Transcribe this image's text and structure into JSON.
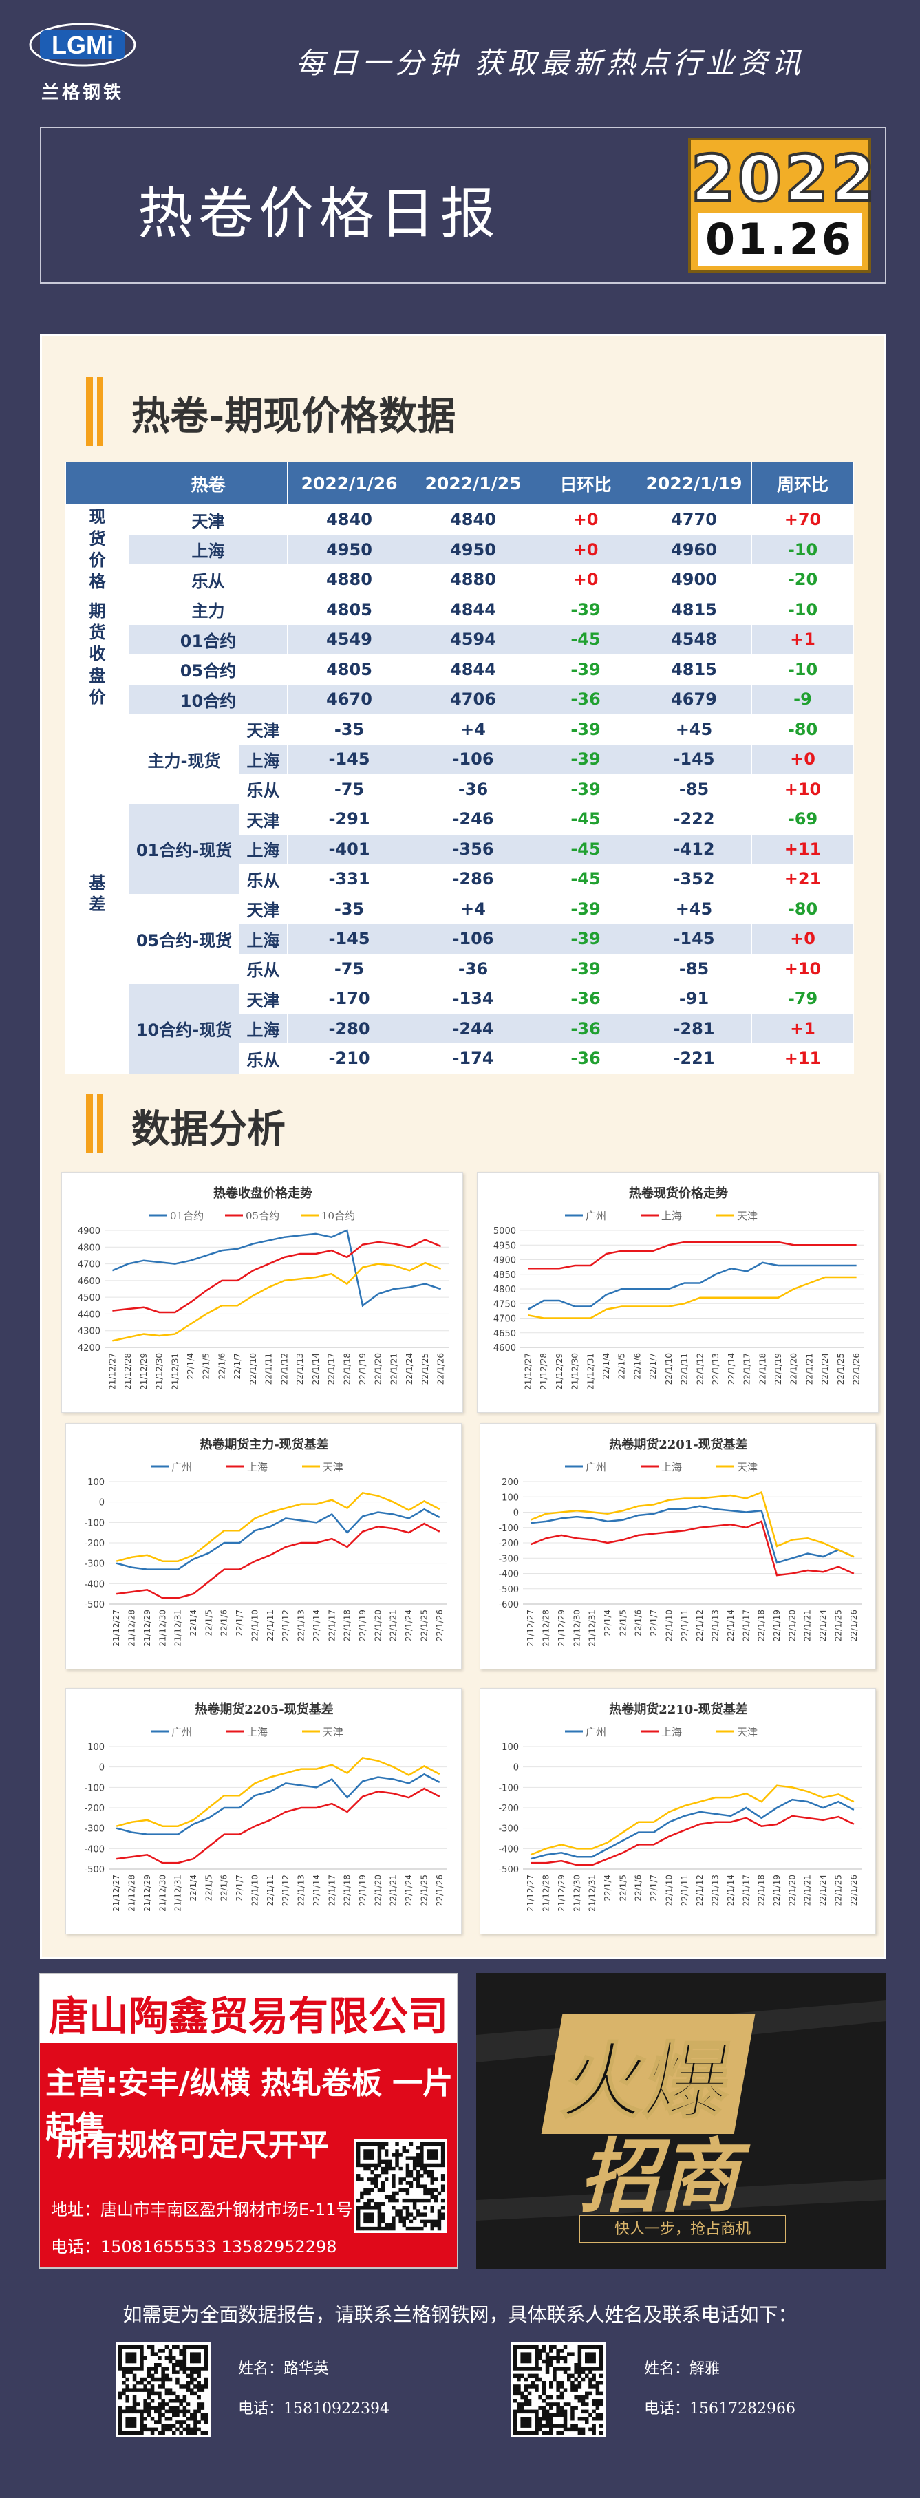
{
  "header": {
    "logo_badge": "LGMi",
    "logo_text": "兰格钢铁",
    "slogan": "每日一分钟  获取最新热点行业资讯",
    "title": "热卷价格日报",
    "date_year": "2022",
    "date_md": "01.26"
  },
  "section1_title": "热卷-期现价格数据",
  "section2_title": "数据分析",
  "table": {
    "headers": [
      "热卷",
      "2022/1/26",
      "2022/1/25",
      "日环比",
      "2022/1/19",
      "周环比"
    ],
    "groups": {
      "spot": "现货价格",
      "futures": "期货收盘价",
      "basis": "基差"
    },
    "spot": [
      {
        "name": "天津",
        "v": [
          "4840",
          "4840",
          "+0",
          "4770",
          "+70"
        ]
      },
      {
        "name": "上海",
        "v": [
          "4950",
          "4950",
          "+0",
          "4960",
          "-10"
        ]
      },
      {
        "name": "乐从",
        "v": [
          "4880",
          "4880",
          "+0",
          "4900",
          "-20"
        ]
      }
    ],
    "futures": [
      {
        "name": "主力",
        "v": [
          "4805",
          "4844",
          "-39",
          "4815",
          "-10"
        ]
      },
      {
        "name": "01合约",
        "v": [
          "4549",
          "4594",
          "-45",
          "4548",
          "+1"
        ]
      },
      {
        "name": "05合约",
        "v": [
          "4805",
          "4844",
          "-39",
          "4815",
          "-10"
        ]
      },
      {
        "name": "10合约",
        "v": [
          "4670",
          "4706",
          "-36",
          "4679",
          "-9"
        ]
      }
    ],
    "basis": [
      {
        "name": "主力-现货",
        "rows": [
          {
            "city": "天津",
            "v": [
              "-35",
              "+4",
              "-39",
              "+45",
              "-80"
            ]
          },
          {
            "city": "上海",
            "v": [
              "-145",
              "-106",
              "-39",
              "-145",
              "+0"
            ]
          },
          {
            "city": "乐从",
            "v": [
              "-75",
              "-36",
              "-39",
              "-85",
              "+10"
            ]
          }
        ]
      },
      {
        "name": "01合约-现货",
        "rows": [
          {
            "city": "天津",
            "v": [
              "-291",
              "-246",
              "-45",
              "-222",
              "-69"
            ]
          },
          {
            "city": "上海",
            "v": [
              "-401",
              "-356",
              "-45",
              "-412",
              "+11"
            ]
          },
          {
            "city": "乐从",
            "v": [
              "-331",
              "-286",
              "-45",
              "-352",
              "+21"
            ]
          }
        ]
      },
      {
        "name": "05合约-现货",
        "rows": [
          {
            "city": "天津",
            "v": [
              "-35",
              "+4",
              "-39",
              "+45",
              "-80"
            ]
          },
          {
            "city": "上海",
            "v": [
              "-145",
              "-106",
              "-39",
              "-145",
              "+0"
            ]
          },
          {
            "city": "乐从",
            "v": [
              "-75",
              "-36",
              "-39",
              "-85",
              "+10"
            ]
          }
        ]
      },
      {
        "name": "10合约-现货",
        "rows": [
          {
            "city": "天津",
            "v": [
              "-170",
              "-134",
              "-36",
              "-91",
              "-79"
            ]
          },
          {
            "city": "上海",
            "v": [
              "-280",
              "-244",
              "-36",
              "-281",
              "+1"
            ]
          },
          {
            "city": "乐从",
            "v": [
              "-210",
              "-174",
              "-36",
              "-221",
              "+11"
            ]
          }
        ]
      }
    ]
  },
  "colors": {
    "blue": "#2e75b6",
    "red": "#e8171c",
    "gold": "#ffc000",
    "header_blue": "#3f6ea8",
    "accent": "#f2ae27"
  },
  "chart_data": [
    {
      "type": "line",
      "title": "热卷收盘价格走势",
      "x": [
        "21/12/27",
        "21/12/28",
        "21/12/29",
        "21/12/30",
        "21/12/31",
        "22/1/4",
        "22/1/5",
        "22/1/6",
        "22/1/7",
        "22/1/10",
        "22/1/11",
        "22/1/12",
        "22/1/13",
        "22/1/14",
        "22/1/17",
        "22/1/18",
        "22/1/19",
        "22/1/20",
        "22/1/21",
        "22/1/24",
        "22/1/25",
        "22/1/26"
      ],
      "ylim": [
        4200,
        4900
      ],
      "yticks": [
        4200,
        4300,
        4400,
        4500,
        4600,
        4700,
        4800,
        4900
      ],
      "series": [
        {
          "name": "01合约",
          "color": "#2e75b6",
          "values": [
            4660,
            4700,
            4720,
            4710,
            4700,
            4720,
            4750,
            4780,
            4790,
            4820,
            4840,
            4860,
            4870,
            4880,
            4860,
            4900,
            4450,
            4520,
            4550,
            4560,
            4580,
            4549
          ]
        },
        {
          "name": "05合约",
          "color": "#e8171c",
          "values": [
            4420,
            4430,
            4440,
            4410,
            4410,
            4470,
            4540,
            4600,
            4600,
            4660,
            4700,
            4740,
            4760,
            4760,
            4780,
            4740,
            4815,
            4830,
            4820,
            4800,
            4844,
            4805
          ]
        },
        {
          "name": "10合约",
          "color": "#ffc000",
          "values": [
            4240,
            4260,
            4280,
            4270,
            4280,
            4340,
            4400,
            4450,
            4450,
            4510,
            4560,
            4600,
            4610,
            4620,
            4640,
            4580,
            4679,
            4700,
            4690,
            4660,
            4706,
            4670
          ]
        }
      ]
    },
    {
      "type": "line",
      "title": "热卷现货价格走势",
      "x": [
        "21/12/27",
        "21/12/28",
        "21/12/29",
        "21/12/30",
        "21/12/31",
        "22/1/4",
        "22/1/5",
        "22/1/6",
        "22/1/7",
        "22/1/10",
        "22/1/11",
        "22/1/12",
        "22/1/13",
        "22/1/14",
        "22/1/17",
        "22/1/18",
        "22/1/19",
        "22/1/20",
        "22/1/21",
        "22/1/24",
        "22/1/25",
        "22/1/26"
      ],
      "ylim": [
        4600,
        5000
      ],
      "yticks": [
        4600,
        4650,
        4700,
        4750,
        4800,
        4850,
        4900,
        4950,
        5000
      ],
      "series": [
        {
          "name": "广州",
          "color": "#2e75b6",
          "values": [
            4730,
            4760,
            4760,
            4740,
            4740,
            4780,
            4800,
            4800,
            4800,
            4800,
            4820,
            4820,
            4850,
            4870,
            4860,
            4890,
            4880,
            4880,
            4880,
            4880,
            4880,
            4880
          ]
        },
        {
          "name": "上海",
          "color": "#e8171c",
          "values": [
            4870,
            4870,
            4870,
            4880,
            4880,
            4920,
            4930,
            4930,
            4930,
            4950,
            4960,
            4960,
            4960,
            4960,
            4960,
            4960,
            4960,
            4950,
            4950,
            4950,
            4950,
            4950
          ]
        },
        {
          "name": "天津",
          "color": "#ffc000",
          "values": [
            4710,
            4700,
            4700,
            4700,
            4700,
            4730,
            4740,
            4740,
            4740,
            4740,
            4750,
            4770,
            4770,
            4770,
            4770,
            4770,
            4770,
            4800,
            4820,
            4840,
            4840,
            4840
          ]
        }
      ]
    },
    {
      "type": "line",
      "title": "热卷期货主力-现货基差",
      "x": [
        "21/12/27",
        "21/12/28",
        "21/12/29",
        "21/12/30",
        "21/12/31",
        "22/1/4",
        "22/1/5",
        "22/1/6",
        "22/1/7",
        "22/1/10",
        "22/1/11",
        "22/1/12",
        "22/1/13",
        "22/1/14",
        "22/1/17",
        "22/1/18",
        "22/1/19",
        "22/1/20",
        "22/1/21",
        "22/1/24",
        "22/1/25",
        "22/1/26"
      ],
      "ylim": [
        -500,
        100
      ],
      "yticks": [
        -500,
        -400,
        -300,
        -200,
        -100,
        0,
        100
      ],
      "series": [
        {
          "name": "广州",
          "color": "#2e75b6",
          "values": [
            -300,
            -320,
            -330,
            -330,
            -330,
            -280,
            -250,
            -200,
            -200,
            -140,
            -120,
            -80,
            -90,
            -100,
            -60,
            -150,
            -70,
            -50,
            -60,
            -80,
            -36,
            -75
          ]
        },
        {
          "name": "上海",
          "color": "#e8171c",
          "values": [
            -450,
            -440,
            -430,
            -470,
            -470,
            -450,
            -390,
            -330,
            -330,
            -290,
            -260,
            -220,
            -200,
            -200,
            -180,
            -220,
            -145,
            -120,
            -130,
            -150,
            -106,
            -145
          ]
        },
        {
          "name": "天津",
          "color": "#ffc000",
          "values": [
            -290,
            -270,
            -260,
            -290,
            -290,
            -260,
            -200,
            -140,
            -140,
            -80,
            -50,
            -30,
            -10,
            -10,
            10,
            -30,
            45,
            30,
            0,
            -40,
            4,
            -35
          ]
        }
      ]
    },
    {
      "type": "line",
      "title": "热卷期货2201-现货基差",
      "x": [
        "21/12/27",
        "21/12/28",
        "21/12/29",
        "21/12/30",
        "21/12/31",
        "22/1/4",
        "22/1/5",
        "22/1/6",
        "22/1/7",
        "22/1/10",
        "22/1/11",
        "22/1/12",
        "22/1/13",
        "22/1/14",
        "22/1/17",
        "22/1/18",
        "22/1/19",
        "22/1/20",
        "22/1/21",
        "22/1/24",
        "22/1/25",
        "22/1/26"
      ],
      "ylim": [
        -600,
        200
      ],
      "yticks": [
        -600,
        -500,
        -400,
        -300,
        -200,
        -100,
        0,
        100,
        200
      ],
      "series": [
        {
          "name": "广州",
          "color": "#2e75b6",
          "values": [
            -70,
            -60,
            -40,
            -30,
            -40,
            -60,
            -50,
            -20,
            -10,
            20,
            20,
            40,
            20,
            10,
            0,
            10,
            -330,
            -300,
            -270,
            -290,
            -246,
            -291
          ]
        },
        {
          "name": "上海",
          "color": "#e8171c",
          "values": [
            -210,
            -170,
            -150,
            -170,
            -180,
            -200,
            -180,
            -150,
            -140,
            -130,
            -120,
            -100,
            -90,
            -80,
            -100,
            -60,
            -412,
            -400,
            -380,
            -390,
            -356,
            -401
          ]
        },
        {
          "name": "天津",
          "color": "#ffc000",
          "values": [
            -50,
            -10,
            0,
            10,
            0,
            -10,
            10,
            40,
            50,
            80,
            90,
            90,
            100,
            110,
            90,
            130,
            -222,
            -180,
            -170,
            -200,
            -246,
            -291
          ]
        }
      ]
    },
    {
      "type": "line",
      "title": "热卷期货2205-现货基差",
      "x": [
        "21/12/27",
        "21/12/28",
        "21/12/29",
        "21/12/30",
        "21/12/31",
        "22/1/4",
        "22/1/5",
        "22/1/6",
        "22/1/7",
        "22/1/10",
        "22/1/11",
        "22/1/12",
        "22/1/13",
        "22/1/14",
        "22/1/17",
        "22/1/18",
        "22/1/19",
        "22/1/20",
        "22/1/21",
        "22/1/24",
        "22/1/25",
        "22/1/26"
      ],
      "ylim": [
        -500,
        100
      ],
      "yticks": [
        -500,
        -400,
        -300,
        -200,
        -100,
        0,
        100
      ],
      "series": [
        {
          "name": "广州",
          "color": "#2e75b6",
          "values": [
            -300,
            -320,
            -330,
            -330,
            -330,
            -280,
            -250,
            -200,
            -200,
            -140,
            -120,
            -80,
            -90,
            -100,
            -60,
            -150,
            -70,
            -50,
            -60,
            -80,
            -36,
            -75
          ]
        },
        {
          "name": "上海",
          "color": "#e8171c",
          "values": [
            -450,
            -440,
            -430,
            -470,
            -470,
            -450,
            -390,
            -330,
            -330,
            -290,
            -260,
            -220,
            -200,
            -200,
            -180,
            -220,
            -145,
            -120,
            -130,
            -150,
            -106,
            -145
          ]
        },
        {
          "name": "天津",
          "color": "#ffc000",
          "values": [
            -290,
            -270,
            -260,
            -290,
            -290,
            -260,
            -200,
            -140,
            -140,
            -80,
            -50,
            -30,
            -10,
            -10,
            10,
            -30,
            45,
            30,
            0,
            -40,
            4,
            -35
          ]
        }
      ]
    },
    {
      "type": "line",
      "title": "热卷期货2210-现货基差",
      "x": [
        "21/12/27",
        "21/12/28",
        "21/12/29",
        "21/12/30",
        "21/12/31",
        "22/1/4",
        "22/1/5",
        "22/1/6",
        "22/1/7",
        "22/1/10",
        "22/1/11",
        "22/1/12",
        "22/1/13",
        "22/1/14",
        "22/1/17",
        "22/1/18",
        "22/1/19",
        "22/1/20",
        "22/1/21",
        "22/1/24",
        "22/1/25",
        "22/1/26"
      ],
      "ylim": [
        -500,
        100
      ],
      "yticks": [
        -500,
        -400,
        -300,
        -200,
        -100,
        0,
        100
      ],
      "series": [
        {
          "name": "广州",
          "color": "#2e75b6",
          "values": [
            -450,
            -430,
            -420,
            -440,
            -440,
            -400,
            -360,
            -320,
            -320,
            -270,
            -240,
            -220,
            -230,
            -240,
            -200,
            -250,
            -200,
            -160,
            -170,
            -200,
            -170,
            -210
          ]
        },
        {
          "name": "上海",
          "color": "#e8171c",
          "values": [
            -470,
            -470,
            -460,
            -480,
            -480,
            -450,
            -420,
            -380,
            -380,
            -340,
            -310,
            -280,
            -270,
            -270,
            -250,
            -290,
            -281,
            -240,
            -250,
            -260,
            -244,
            -280
          ]
        },
        {
          "name": "天津",
          "color": "#ffc000",
          "values": [
            -430,
            -400,
            -380,
            -400,
            -400,
            -370,
            -320,
            -270,
            -270,
            -220,
            -190,
            -170,
            -150,
            -150,
            -130,
            -170,
            -91,
            -100,
            -120,
            -150,
            -134,
            -170
          ]
        }
      ]
    }
  ],
  "ad_left": {
    "company": "唐山陶鑫贸易有限公司",
    "main_business": "主营:安丰/纵横 热轧卷板 一片起售",
    "slogan": "所有规格可定尺开平",
    "address": "地址：唐山市丰南区盈升钢材市场E-11号",
    "phone": "电话：15081655533   13582952298"
  },
  "ad_right": {
    "line1": "火爆",
    "line2": "招商",
    "tag": "快人一步，抢占商机"
  },
  "footer": {
    "text": "如需更为全面数据报告，请联系兰格钢铁网，具体联系人姓名及联系电话如下：",
    "contacts": [
      {
        "name": "姓名：路华英",
        "phone": "电话：15810922394"
      },
      {
        "name": "姓名：解雅",
        "phone": "电话：15617282966"
      }
    ]
  }
}
